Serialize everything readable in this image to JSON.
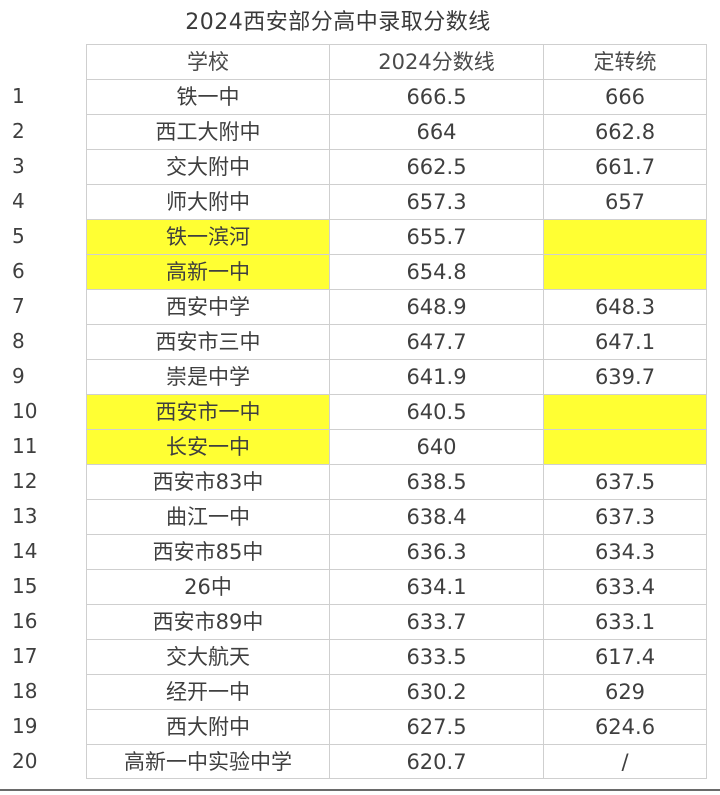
{
  "title": "2024西安部分高中录取分数线",
  "headers": {
    "school": "学校",
    "score": "2024分数线",
    "dingzhuan": "定转统"
  },
  "highlight_color": "#ffff33",
  "rows": [
    {
      "idx": "1",
      "school": "铁一中",
      "score": "666.5",
      "dz": "666",
      "highlight": false
    },
    {
      "idx": "2",
      "school": "西工大附中",
      "score": "664",
      "dz": "662.8",
      "highlight": false
    },
    {
      "idx": "3",
      "school": "交大附中",
      "score": "662.5",
      "dz": "661.7",
      "highlight": false
    },
    {
      "idx": "4",
      "school": "师大附中",
      "score": "657.3",
      "dz": "657",
      "highlight": false
    },
    {
      "idx": "5",
      "school": "铁一滨河",
      "score": "655.7",
      "dz": "",
      "highlight": true
    },
    {
      "idx": "6",
      "school": "高新一中",
      "score": "654.8",
      "dz": "",
      "highlight": true
    },
    {
      "idx": "7",
      "school": "西安中学",
      "score": "648.9",
      "dz": "648.3",
      "highlight": false
    },
    {
      "idx": "8",
      "school": "西安市三中",
      "score": "647.7",
      "dz": "647.1",
      "highlight": false
    },
    {
      "idx": "9",
      "school": "崇是中学",
      "score": "641.9",
      "dz": "639.7",
      "highlight": false
    },
    {
      "idx": "10",
      "school": "西安市一中",
      "score": "640.5",
      "dz": "",
      "highlight": true
    },
    {
      "idx": "11",
      "school": "长安一中",
      "score": "640",
      "dz": "",
      "highlight": true
    },
    {
      "idx": "12",
      "school": "西安市83中",
      "score": "638.5",
      "dz": "637.5",
      "highlight": false
    },
    {
      "idx": "13",
      "school": "曲江一中",
      "score": "638.4",
      "dz": "637.3",
      "highlight": false
    },
    {
      "idx": "14",
      "school": "西安市85中",
      "score": "636.3",
      "dz": "634.3",
      "highlight": false
    },
    {
      "idx": "15",
      "school": "26中",
      "score": "634.1",
      "dz": "633.4",
      "highlight": false
    },
    {
      "idx": "16",
      "school": "西安市89中",
      "score": "633.7",
      "dz": "633.1",
      "highlight": false
    },
    {
      "idx": "17",
      "school": "交大航天",
      "score": "633.5",
      "dz": "617.4",
      "highlight": false
    },
    {
      "idx": "18",
      "school": "经开一中",
      "score": "630.2",
      "dz": "629",
      "highlight": false
    },
    {
      "idx": "19",
      "school": "西大附中",
      "score": "627.5",
      "dz": "624.6",
      "highlight": false
    },
    {
      "idx": "20",
      "school": "高新一中实验中学",
      "score": "620.7",
      "dz": "/",
      "highlight": false
    }
  ]
}
